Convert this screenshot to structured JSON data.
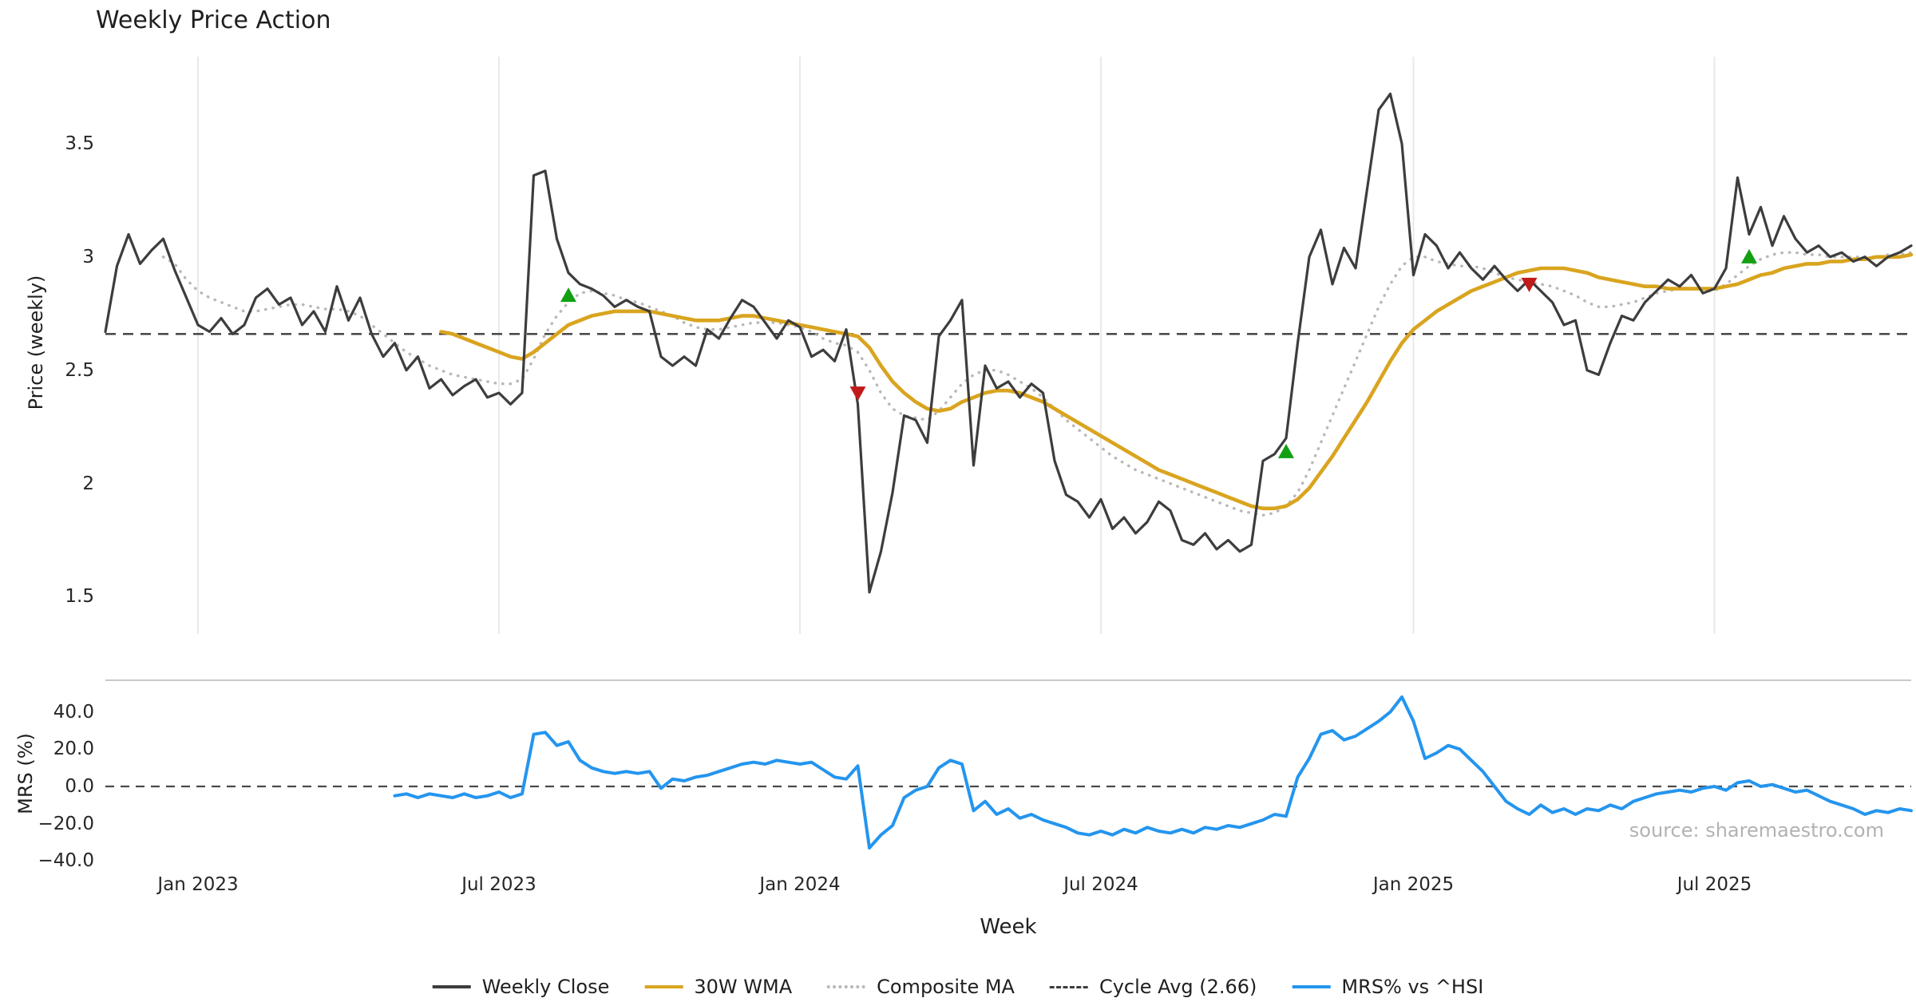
{
  "title": "Weekly Price Action",
  "source": "source: sharemaestro.com",
  "x_axis": {
    "label": "Week",
    "total_weeks": 157
  },
  "colors": {
    "close": "#3d3d3d",
    "wma": "#D9A41F",
    "composite": "#b8b8b8",
    "cycle": "#3c3c3c",
    "mrs": "#2495EE",
    "buy": "#12A012",
    "sell": "#C11A1A",
    "grid": "#e9e9e9",
    "spine": "#c9c9c9",
    "zero": "#4a4a4a"
  },
  "legend": [
    {
      "label": "Weekly Close",
      "color": "#3d3d3d",
      "style": "solid"
    },
    {
      "label": "30W WMA",
      "color": "#D9A41F",
      "style": "solid"
    },
    {
      "label": "Composite MA",
      "color": "#b8b8b8",
      "style": "dotted"
    },
    {
      "label": "Cycle Avg (2.66)",
      "color": "#3c3c3c",
      "style": "dashed"
    },
    {
      "label": "MRS% vs ^HSI",
      "color": "#2495EE",
      "style": "solid"
    }
  ],
  "chart_data": [
    {
      "type": "line",
      "panel": "price",
      "title": "Weekly Price Action",
      "ylabel": "Price (weekly)",
      "xlabel": "Week",
      "ylim": [
        1.35,
        3.87
      ],
      "grid": "vertical",
      "yticks": [
        1.5,
        2,
        2.5,
        3,
        3.5
      ],
      "ytick_labels": [
        "1.5",
        "2",
        "2.5",
        "3",
        "3.5"
      ],
      "xtick_labels": [
        "Jan 2023",
        "Jul 2023",
        "Jan 2024",
        "Jul 2024",
        "Jan 2025",
        "Jul 2025"
      ],
      "xtick_weeks": [
        8,
        34,
        60,
        86,
        113,
        139
      ],
      "cycle_avg": 2.66,
      "series": [
        {
          "name": "Weekly Close",
          "start_week": 0,
          "values": [
            2.67,
            2.96,
            3.1,
            2.97,
            3.03,
            3.08,
            2.94,
            2.82,
            2.7,
            2.67,
            2.73,
            2.66,
            2.7,
            2.82,
            2.86,
            2.79,
            2.82,
            2.7,
            2.76,
            2.67,
            2.87,
            2.72,
            2.82,
            2.66,
            2.56,
            2.62,
            2.5,
            2.56,
            2.42,
            2.46,
            2.39,
            2.43,
            2.46,
            2.38,
            2.4,
            2.35,
            2.4,
            3.36,
            3.38,
            3.08,
            2.93,
            2.88,
            2.86,
            2.83,
            2.78,
            2.81,
            2.78,
            2.76,
            2.56,
            2.52,
            2.56,
            2.52,
            2.68,
            2.64,
            2.73,
            2.81,
            2.78,
            2.71,
            2.64,
            2.72,
            2.69,
            2.56,
            2.59,
            2.54,
            2.68,
            2.35,
            1.52,
            1.7,
            1.96,
            2.3,
            2.28,
            2.18,
            2.65,
            2.72,
            2.81,
            2.08,
            2.52,
            2.42,
            2.45,
            2.38,
            2.44,
            2.4,
            2.1,
            1.95,
            1.92,
            1.85,
            1.93,
            1.8,
            1.85,
            1.78,
            1.83,
            1.92,
            1.88,
            1.75,
            1.73,
            1.78,
            1.71,
            1.75,
            1.7,
            1.73,
            2.1,
            2.13,
            2.2,
            2.62,
            3.0,
            3.12,
            2.88,
            3.04,
            2.95,
            3.3,
            3.65,
            3.72,
            3.5,
            2.92,
            3.1,
            3.05,
            2.95,
            3.02,
            2.95,
            2.9,
            2.96,
            2.9,
            2.85,
            2.9,
            2.85,
            2.8,
            2.7,
            2.72,
            2.5,
            2.48,
            2.62,
            2.74,
            2.72,
            2.8,
            2.85,
            2.9,
            2.87,
            2.92,
            2.84,
            2.86,
            2.95,
            3.35,
            3.1,
            3.22,
            3.05,
            3.18,
            3.08,
            3.02,
            3.05,
            3.0,
            3.02,
            2.98,
            3.0,
            2.96,
            3.0,
            3.02,
            3.05
          ]
        },
        {
          "name": "30W WMA",
          "start_week": 29,
          "values": [
            2.67,
            2.66,
            2.64,
            2.62,
            2.6,
            2.58,
            2.56,
            2.55,
            2.58,
            2.62,
            2.66,
            2.7,
            2.72,
            2.74,
            2.75,
            2.76,
            2.76,
            2.76,
            2.76,
            2.75,
            2.74,
            2.73,
            2.72,
            2.72,
            2.72,
            2.73,
            2.74,
            2.74,
            2.73,
            2.72,
            2.71,
            2.7,
            2.69,
            2.68,
            2.67,
            2.66,
            2.65,
            2.6,
            2.52,
            2.45,
            2.4,
            2.36,
            2.33,
            2.32,
            2.33,
            2.36,
            2.38,
            2.4,
            2.41,
            2.41,
            2.4,
            2.38,
            2.36,
            2.33,
            2.3,
            2.27,
            2.24,
            2.21,
            2.18,
            2.15,
            2.12,
            2.09,
            2.06,
            2.04,
            2.02,
            2.0,
            1.98,
            1.96,
            1.94,
            1.92,
            1.9,
            1.89,
            1.89,
            1.9,
            1.93,
            1.98,
            2.05,
            2.12,
            2.2,
            2.28,
            2.36,
            2.45,
            2.54,
            2.62,
            2.68,
            2.72,
            2.76,
            2.79,
            2.82,
            2.85,
            2.87,
            2.89,
            2.91,
            2.93,
            2.94,
            2.95,
            2.95,
            2.95,
            2.94,
            2.93,
            2.91,
            2.9,
            2.89,
            2.88,
            2.87,
            2.87,
            2.86,
            2.86,
            2.86,
            2.86,
            2.86,
            2.87,
            2.88,
            2.9,
            2.92,
            2.93,
            2.95,
            2.96,
            2.97,
            2.97,
            2.98,
            2.98,
            2.99,
            2.99,
            3.0,
            3.0,
            3.0,
            3.01
          ]
        },
        {
          "name": "Composite MA",
          "start_week": 5,
          "values": [
            3.0,
            2.97,
            2.9,
            2.85,
            2.82,
            2.8,
            2.78,
            2.76,
            2.76,
            2.77,
            2.78,
            2.79,
            2.79,
            2.78,
            2.77,
            2.77,
            2.76,
            2.74,
            2.7,
            2.66,
            2.62,
            2.58,
            2.55,
            2.52,
            2.5,
            2.48,
            2.47,
            2.46,
            2.45,
            2.44,
            2.44,
            2.46,
            2.55,
            2.66,
            2.74,
            2.8,
            2.84,
            2.85,
            2.84,
            2.83,
            2.81,
            2.8,
            2.78,
            2.76,
            2.74,
            2.71,
            2.69,
            2.68,
            2.68,
            2.69,
            2.7,
            2.71,
            2.71,
            2.71,
            2.7,
            2.69,
            2.67,
            2.64,
            2.62,
            2.61,
            2.58,
            2.5,
            2.4,
            2.33,
            2.3,
            2.29,
            2.28,
            2.32,
            2.38,
            2.44,
            2.48,
            2.5,
            2.5,
            2.48,
            2.45,
            2.42,
            2.38,
            2.33,
            2.28,
            2.24,
            2.2,
            2.16,
            2.12,
            2.09,
            2.06,
            2.04,
            2.02,
            2.0,
            1.98,
            1.96,
            1.94,
            1.92,
            1.9,
            1.88,
            1.87,
            1.86,
            1.87,
            1.9,
            1.96,
            2.06,
            2.18,
            2.3,
            2.42,
            2.54,
            2.66,
            2.78,
            2.88,
            2.96,
            3.0,
            3.0,
            2.98,
            2.97,
            2.96,
            2.96,
            2.95,
            2.93,
            2.91,
            2.9,
            2.89,
            2.88,
            2.87,
            2.85,
            2.83,
            2.8,
            2.78,
            2.78,
            2.79,
            2.8,
            2.82,
            2.84,
            2.85,
            2.86,
            2.86,
            2.85,
            2.85,
            2.88,
            2.92,
            2.96,
            2.99,
            3.01,
            3.02,
            3.02,
            3.01,
            3.01,
            3.0,
            3.0,
            3.0,
            3.0,
            3.0,
            3.01,
            3.01,
            3.02
          ]
        }
      ],
      "signals": {
        "buy": [
          {
            "week": 40,
            "value": 2.83
          },
          {
            "week": 102,
            "value": 2.14
          },
          {
            "week": 142,
            "value": 3.0
          }
        ],
        "sell": [
          {
            "week": 65,
            "value": 2.4
          },
          {
            "week": 123,
            "value": 2.88
          }
        ]
      }
    },
    {
      "type": "line",
      "panel": "mrs",
      "ylabel": "MRS (%)",
      "ylim": [
        -45,
        57
      ],
      "yticks": [
        -40,
        -20,
        0,
        20,
        40
      ],
      "ytick_labels": [
        "−40.0",
        "−20.0",
        "0.0",
        "20.0",
        "40.0"
      ],
      "zero_line": 0,
      "series": [
        {
          "name": "MRS% vs ^HSI",
          "start_week": 25,
          "values": [
            -5,
            -4,
            -6,
            -4,
            -5,
            -6,
            -4,
            -6,
            -5,
            -3,
            -6,
            -4,
            28,
            29,
            22,
            24,
            14,
            10,
            8,
            7,
            8,
            7,
            8,
            -1,
            4,
            3,
            5,
            6,
            8,
            10,
            12,
            13,
            12,
            14,
            13,
            12,
            13,
            9,
            5,
            4,
            11,
            -33,
            -26,
            -21,
            -6,
            -2,
            0,
            10,
            14,
            12,
            -13,
            -8,
            -15,
            -12,
            -17,
            -15,
            -18,
            -20,
            -22,
            -25,
            -26,
            -24,
            -26,
            -23,
            -25,
            -22,
            -24,
            -25,
            -23,
            -25,
            -22,
            -23,
            -21,
            -22,
            -20,
            -18,
            -15,
            -16,
            5,
            15,
            28,
            30,
            25,
            27,
            31,
            35,
            40,
            48,
            35,
            15,
            18,
            22,
            20,
            14,
            8,
            0,
            -8,
            -12,
            -15,
            -10,
            -14,
            -12,
            -15,
            -12,
            -13,
            -10,
            -12,
            -8,
            -6,
            -4,
            -3,
            -2,
            -3,
            -1,
            0,
            -2,
            2,
            3,
            0,
            1,
            -1,
            -3,
            -2,
            -5,
            -8,
            -10,
            -12,
            -15,
            -13,
            -14,
            -12,
            -13
          ]
        }
      ]
    }
  ]
}
